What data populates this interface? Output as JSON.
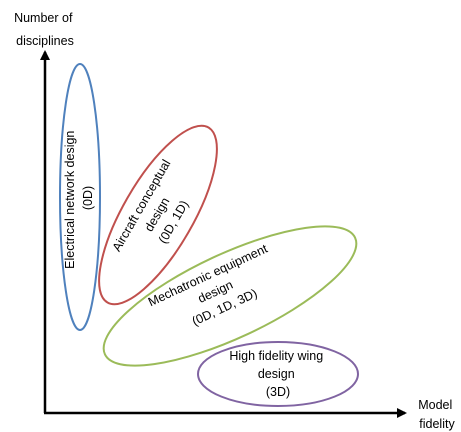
{
  "axes": {
    "y_label_lines": [
      "Number of",
      "disciplines"
    ],
    "x_label_lines": [
      "Model",
      "fidelity"
    ]
  },
  "ellipses": [
    {
      "id": "electrical",
      "lines": [
        "Electrical network design",
        "(0D)"
      ],
      "color": "#4f81bd"
    },
    {
      "id": "aircraft",
      "lines": [
        "Aircraft conceptual",
        "design",
        "(0D, 1D)"
      ],
      "color": "#c0504d"
    },
    {
      "id": "mechatronic",
      "lines": [
        "Mechatronic equipment",
        "design",
        "(0D, 1D, 3D)"
      ],
      "color": "#9bbb59"
    },
    {
      "id": "wing",
      "lines": [
        "High fidelity wing",
        "design",
        "(3D)"
      ],
      "color": "#8064a2"
    }
  ]
}
